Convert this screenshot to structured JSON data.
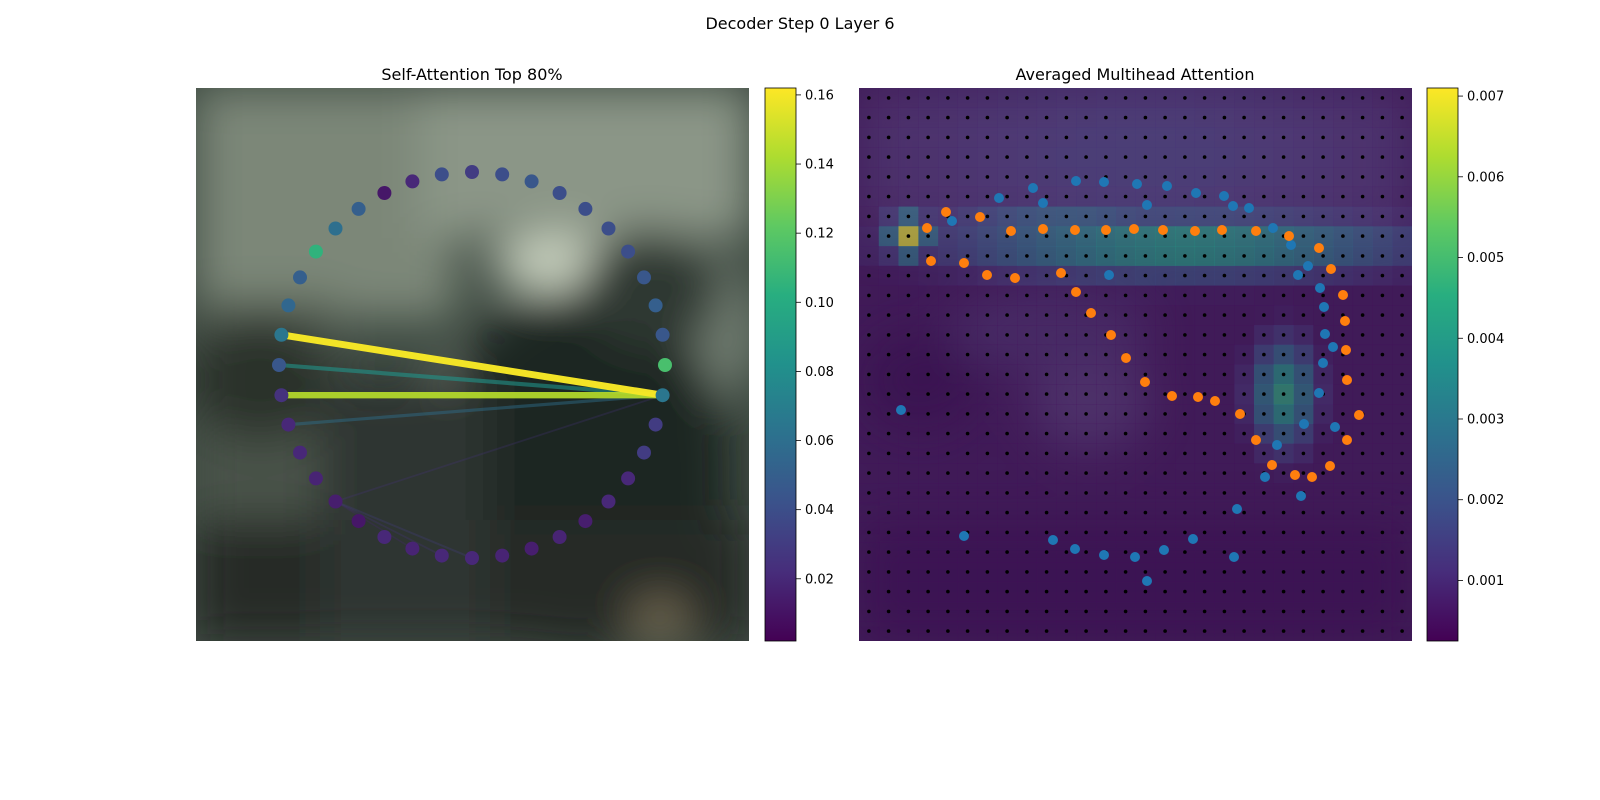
{
  "figure_title": "Decoder Step 0 Layer 6",
  "chart_data": [
    {
      "type": "scatter",
      "title": "Self-Attention Top 80%",
      "description_kind": "point-circle attention graph over blurred photo",
      "n_points": 40,
      "point_values": [
        0.03,
        0.04,
        0.02,
        0.012,
        0.05,
        0.06,
        0.105,
        0.05,
        0.055,
        0.065,
        0.045,
        0.025,
        0.02,
        0.02,
        0.018,
        0.015,
        0.012,
        0.02,
        0.018,
        0.02,
        0.02,
        0.018,
        0.015,
        0.018,
        0.015,
        0.02,
        0.02,
        0.03,
        0.03,
        0.065,
        0.115,
        0.045,
        0.05,
        0.045,
        0.04,
        0.04,
        0.04,
        0.04,
        0.045,
        0.04
      ],
      "edges": [
        {
          "from": 29,
          "to": 9,
          "weight": 0.16
        },
        {
          "from": 29,
          "to": 11,
          "weight": 0.145
        },
        {
          "from": 29,
          "to": 10,
          "weight": 0.085
        },
        {
          "from": 29,
          "to": 12,
          "weight": 0.06
        },
        {
          "from": 29,
          "to": 15,
          "weight": 0.025
        },
        {
          "from": 15,
          "to": 20,
          "weight": 0.03
        },
        {
          "from": 15,
          "to": 19,
          "weight": 0.025
        },
        {
          "from": 15,
          "to": 18,
          "weight": 0.02
        }
      ],
      "colorbar": {
        "ticks": [
          "0.02",
          "0.04",
          "0.06",
          "0.08",
          "0.10",
          "0.12",
          "0.14",
          "0.16"
        ],
        "min": 0.002,
        "max": 0.162,
        "colormap": "viridis"
      }
    },
    {
      "type": "heatmap",
      "title": "Averaged Multihead Attention",
      "grid_rows": 28,
      "grid_cols": 28,
      "hotspots": [
        {
          "row": 7.5,
          "col": 16,
          "rs": 1.5,
          "cs": 11,
          "value": 0.0045
        },
        {
          "row": 7.0,
          "col": 2.0,
          "rs": 1.0,
          "cs": 1.0,
          "value": 0.007
        },
        {
          "row": 15.0,
          "col": 21,
          "rs": 2.5,
          "cs": 1.5,
          "value": 0.0045
        },
        {
          "row": 6.5,
          "col": 10,
          "rs": 1.0,
          "cs": 6,
          "value": 0.003
        },
        {
          "row": 3.0,
          "col": 14,
          "rs": 6,
          "cs": 14,
          "value": 0.0012
        }
      ],
      "blue_series": [
        [
          184,
          115
        ],
        [
          250,
          187
        ],
        [
          288,
          117
        ],
        [
          374,
          118
        ],
        [
          439,
          187
        ],
        [
          474,
          259
        ],
        [
          476,
          339
        ],
        [
          442,
          408
        ],
        [
          375,
          469
        ],
        [
          288,
          493
        ],
        [
          194,
          452
        ],
        [
          105,
          448
        ],
        [
          42,
          322
        ],
        [
          93,
          133
        ],
        [
          140,
          110
        ],
        [
          174,
          100
        ],
        [
          217,
          93
        ],
        [
          245,
          94
        ],
        [
          278,
          96
        ],
        [
          308,
          98
        ],
        [
          337,
          105
        ],
        [
          365,
          108
        ],
        [
          390,
          120
        ],
        [
          414,
          140
        ],
        [
          432,
          157
        ],
        [
          449,
          178
        ],
        [
          461,
          200
        ],
        [
          465,
          219
        ],
        [
          466,
          246
        ],
        [
          464,
          275
        ],
        [
          460,
          305
        ],
        [
          445,
          336
        ],
        [
          418,
          357
        ],
        [
          406,
          389
        ],
        [
          378,
          421
        ],
        [
          334,
          451
        ],
        [
          305,
          462
        ],
        [
          276,
          469
        ],
        [
          245,
          467
        ],
        [
          216,
          461
        ]
      ],
      "orange_series": [
        [
          68,
          140
        ],
        [
          87,
          124
        ],
        [
          121,
          129
        ],
        [
          152,
          143
        ],
        [
          184,
          141
        ],
        [
          216,
          142
        ],
        [
          247,
          142
        ],
        [
          275,
          141
        ],
        [
          304,
          142
        ],
        [
          336,
          143
        ],
        [
          363,
          142
        ],
        [
          397,
          143
        ],
        [
          430,
          148
        ],
        [
          460,
          160
        ],
        [
          472,
          181
        ],
        [
          484,
          207
        ],
        [
          486,
          233
        ],
        [
          487,
          262
        ],
        [
          488,
          292
        ],
        [
          500,
          327
        ],
        [
          488,
          352
        ],
        [
          471,
          378
        ],
        [
          453,
          389
        ],
        [
          436,
          387
        ],
        [
          413,
          377
        ],
        [
          397,
          352
        ],
        [
          381,
          326
        ],
        [
          356,
          313
        ],
        [
          339,
          309
        ],
        [
          313,
          308
        ],
        [
          286,
          294
        ],
        [
          267,
          270
        ],
        [
          252,
          247
        ],
        [
          232,
          225
        ],
        [
          217,
          204
        ],
        [
          202,
          185
        ],
        [
          156,
          190
        ],
        [
          128,
          187
        ],
        [
          105,
          175
        ],
        [
          72,
          173
        ]
      ],
      "colorbar": {
        "ticks": [
          "0.001",
          "0.002",
          "0.003",
          "0.004",
          "0.005",
          "0.006",
          "0.007"
        ],
        "min": 0.00025,
        "max": 0.0071,
        "colormap": "viridis"
      }
    }
  ]
}
